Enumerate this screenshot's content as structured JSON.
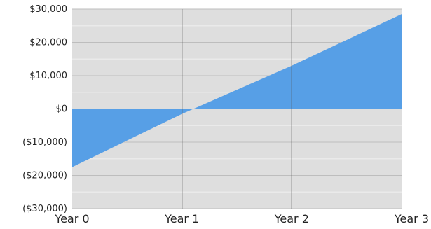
{
  "chart_data": {
    "type": "area",
    "title": "",
    "xlabel": "",
    "ylabel": "",
    "categories": [
      "Year 0",
      "Year 1",
      "Year 2",
      "Year 3"
    ],
    "series": [
      {
        "values": [
          -17500,
          -1500,
          13000,
          28500
        ],
        "color": "#579FE6"
      }
    ],
    "y_ticks": [
      {
        "value": 30000,
        "label": "$30,000"
      },
      {
        "value": 20000,
        "label": "$20,000"
      },
      {
        "value": 10000,
        "label": "$10,000"
      },
      {
        "value": 0,
        "label": "$0"
      },
      {
        "value": -10000,
        "label": "($10,000)"
      },
      {
        "value": -20000,
        "label": "($20,000)"
      },
      {
        "value": -30000,
        "label": "($30,000)"
      }
    ],
    "ylim": [
      -30000,
      30000
    ],
    "grid": true,
    "legend": "none",
    "colors": {
      "plot_background": "#DEDEDE",
      "major_grid": "#BDBDBD",
      "minor_grid": "#EAEAEA",
      "vertical_grid": "#555555",
      "fill": "#579FE6"
    }
  }
}
